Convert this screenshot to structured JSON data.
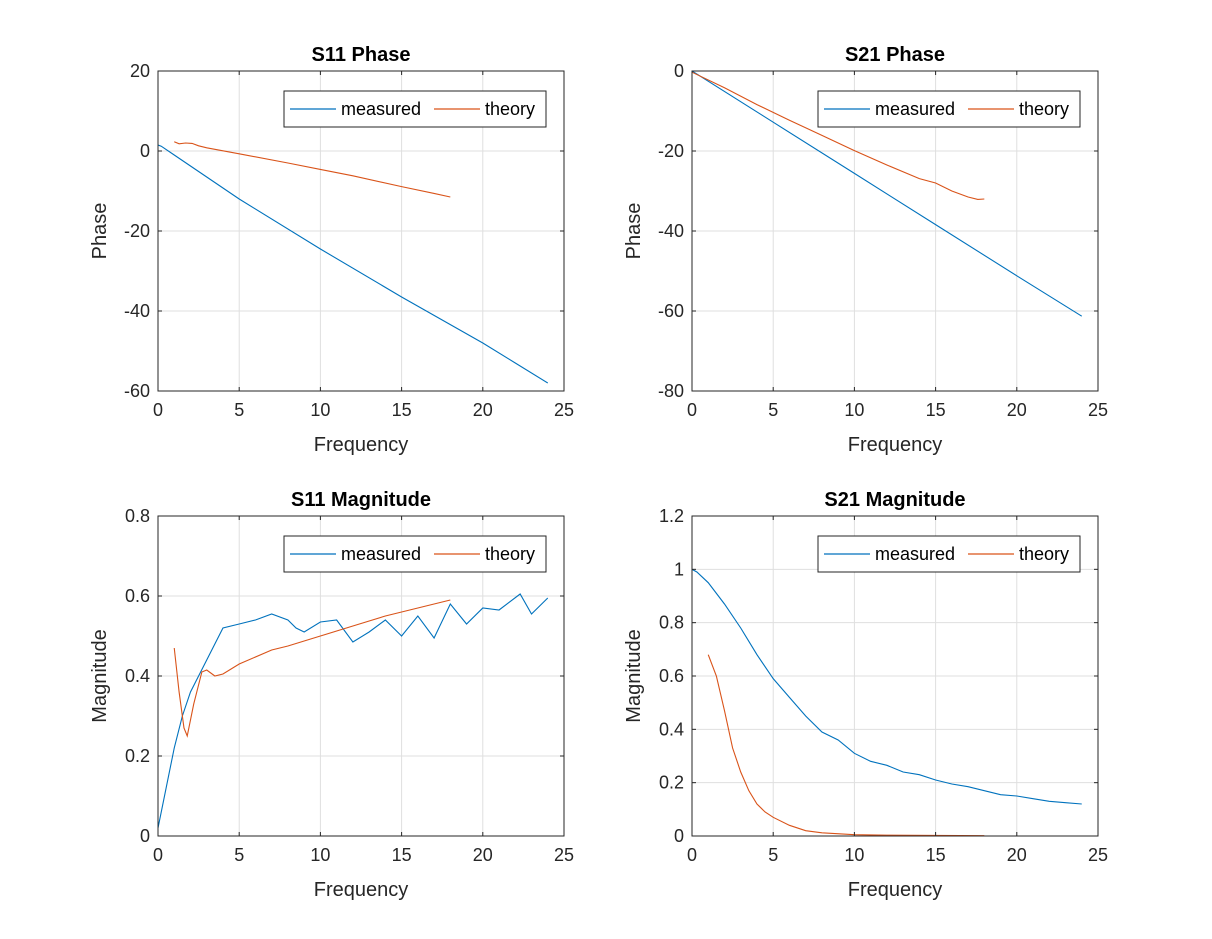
{
  "chart_data": [
    {
      "type": "line",
      "title": "S11 Phase",
      "xlabel": "Frequency",
      "ylabel": "Phase",
      "xlim": [
        0,
        25
      ],
      "ylim": [
        -60,
        20
      ],
      "xticks": [
        0,
        5,
        10,
        15,
        20,
        25
      ],
      "yticks": [
        -60,
        -40,
        -20,
        0,
        20
      ],
      "grid": true,
      "legend_position": "top-right",
      "legend": [
        "measured",
        "theory"
      ],
      "series": [
        {
          "name": "measured",
          "color": "#0072BD",
          "points": [
            [
              0,
              1.5
            ],
            [
              0.2,
              1.2
            ],
            [
              1,
              -1
            ],
            [
              5,
              -12
            ],
            [
              10,
              -24.5
            ],
            [
              15,
              -36.5
            ],
            [
              20,
              -48
            ],
            [
              22,
              -53
            ],
            [
              24,
              -58
            ]
          ]
        },
        {
          "name": "theory",
          "color": "#D95319",
          "points": [
            [
              1,
              2.3
            ],
            [
              1.3,
              1.8
            ],
            [
              1.7,
              2.0
            ],
            [
              2.1,
              1.9
            ],
            [
              2.5,
              1.3
            ],
            [
              3,
              0.8
            ],
            [
              5,
              -0.7
            ],
            [
              8,
              -3.0
            ],
            [
              10,
              -4.6
            ],
            [
              12,
              -6.2
            ],
            [
              15,
              -8.9
            ],
            [
              17,
              -10.6
            ],
            [
              18,
              -11.5
            ]
          ]
        }
      ]
    },
    {
      "type": "line",
      "title": "S21 Phase",
      "xlabel": "Frequency",
      "ylabel": "Phase",
      "xlim": [
        0,
        25
      ],
      "ylim": [
        -80,
        0
      ],
      "xticks": [
        0,
        5,
        10,
        15,
        20,
        25
      ],
      "yticks": [
        -80,
        -60,
        -40,
        -20,
        0
      ],
      "grid": true,
      "legend_position": "top-right",
      "legend": [
        "measured",
        "theory"
      ],
      "series": [
        {
          "name": "measured",
          "color": "#0072BD",
          "points": [
            [
              0,
              0
            ],
            [
              5,
              -12.8
            ],
            [
              10,
              -25.6
            ],
            [
              15,
              -38.4
            ],
            [
              20,
              -51.2
            ],
            [
              24,
              -61.3
            ]
          ]
        },
        {
          "name": "theory",
          "color": "#D95319",
          "points": [
            [
              0,
              -0.3
            ],
            [
              2,
              -4.2
            ],
            [
              4,
              -8.4
            ],
            [
              6,
              -12.3
            ],
            [
              8,
              -16.1
            ],
            [
              10,
              -19.9
            ],
            [
              12,
              -23.5
            ],
            [
              14,
              -26.9
            ],
            [
              15,
              -28.0
            ],
            [
              16,
              -30.0
            ],
            [
              17,
              -31.5
            ],
            [
              17.6,
              -32.1
            ],
            [
              18,
              -32.0
            ]
          ]
        }
      ]
    },
    {
      "type": "line",
      "title": "S11 Magnitude",
      "xlabel": "Frequency",
      "ylabel": "Magnitude",
      "xlim": [
        0,
        25
      ],
      "ylim": [
        0,
        0.8
      ],
      "xticks": [
        0,
        5,
        10,
        15,
        20,
        25
      ],
      "yticks": [
        0,
        0.2,
        0.4,
        0.6,
        0.8
      ],
      "grid": true,
      "legend_position": "top-right",
      "legend": [
        "measured",
        "theory"
      ],
      "series": [
        {
          "name": "measured",
          "color": "#0072BD",
          "points": [
            [
              0,
              0.02
            ],
            [
              0.5,
              0.12
            ],
            [
              1,
              0.22
            ],
            [
              1.5,
              0.3
            ],
            [
              2,
              0.36
            ],
            [
              2.5,
              0.4
            ],
            [
              3,
              0.44
            ],
            [
              3.5,
              0.48
            ],
            [
              4,
              0.52
            ],
            [
              5,
              0.53
            ],
            [
              6,
              0.54
            ],
            [
              7,
              0.555
            ],
            [
              8,
              0.54
            ],
            [
              8.5,
              0.52
            ],
            [
              9,
              0.51
            ],
            [
              10,
              0.535
            ],
            [
              11,
              0.54
            ],
            [
              12,
              0.485
            ],
            [
              13,
              0.51
            ],
            [
              14,
              0.54
            ],
            [
              15,
              0.5
            ],
            [
              16,
              0.55
            ],
            [
              17,
              0.495
            ],
            [
              18,
              0.58
            ],
            [
              19,
              0.53
            ],
            [
              20,
              0.57
            ],
            [
              21,
              0.565
            ],
            [
              22.3,
              0.605
            ],
            [
              23,
              0.555
            ],
            [
              24,
              0.595
            ]
          ]
        },
        {
          "name": "theory",
          "color": "#D95319",
          "points": [
            [
              1,
              0.47
            ],
            [
              1.3,
              0.36
            ],
            [
              1.6,
              0.27
            ],
            [
              1.8,
              0.25
            ],
            [
              2.2,
              0.33
            ],
            [
              2.7,
              0.41
            ],
            [
              3,
              0.415
            ],
            [
              3.5,
              0.4
            ],
            [
              4,
              0.405
            ],
            [
              5,
              0.43
            ],
            [
              7,
              0.465
            ],
            [
              8,
              0.475
            ],
            [
              10,
              0.5
            ],
            [
              12,
              0.525
            ],
            [
              14,
              0.55
            ],
            [
              16,
              0.57
            ],
            [
              17,
              0.58
            ],
            [
              18,
              0.59
            ]
          ]
        }
      ]
    },
    {
      "type": "line",
      "title": "S21 Magnitude",
      "xlabel": "Frequency",
      "ylabel": "Magnitude",
      "xlim": [
        0,
        25
      ],
      "ylim": [
        0,
        1.2
      ],
      "xticks": [
        0,
        5,
        10,
        15,
        20,
        25
      ],
      "yticks": [
        0,
        0.2,
        0.4,
        0.6,
        0.8,
        1,
        1.2
      ],
      "grid": true,
      "legend_position": "top-right",
      "legend": [
        "measured",
        "theory"
      ],
      "series": [
        {
          "name": "measured",
          "color": "#0072BD",
          "points": [
            [
              0,
              1.0
            ],
            [
              0.3,
              0.99
            ],
            [
              1,
              0.95
            ],
            [
              2,
              0.87
            ],
            [
              3,
              0.78
            ],
            [
              4,
              0.68
            ],
            [
              5,
              0.59
            ],
            [
              6,
              0.52
            ],
            [
              7,
              0.45
            ],
            [
              8,
              0.39
            ],
            [
              9,
              0.36
            ],
            [
              10,
              0.31
            ],
            [
              11,
              0.28
            ],
            [
              12,
              0.265
            ],
            [
              13,
              0.24
            ],
            [
              14,
              0.23
            ],
            [
              15,
              0.21
            ],
            [
              16,
              0.195
            ],
            [
              17,
              0.185
            ],
            [
              18,
              0.17
            ],
            [
              19,
              0.155
            ],
            [
              20,
              0.15
            ],
            [
              21,
              0.14
            ],
            [
              22,
              0.13
            ],
            [
              23,
              0.125
            ],
            [
              24,
              0.12
            ]
          ]
        },
        {
          "name": "theory",
          "color": "#D95319",
          "points": [
            [
              1,
              0.68
            ],
            [
              1.5,
              0.6
            ],
            [
              2,
              0.47
            ],
            [
              2.5,
              0.33
            ],
            [
              3,
              0.24
            ],
            [
              3.5,
              0.17
            ],
            [
              4,
              0.12
            ],
            [
              4.5,
              0.09
            ],
            [
              5,
              0.07
            ],
            [
              6,
              0.04
            ],
            [
              7,
              0.02
            ],
            [
              8,
              0.012
            ],
            [
              10,
              0.005
            ],
            [
              12,
              0.003
            ],
            [
              15,
              0.002
            ],
            [
              18,
              0.001
            ]
          ]
        }
      ]
    }
  ]
}
